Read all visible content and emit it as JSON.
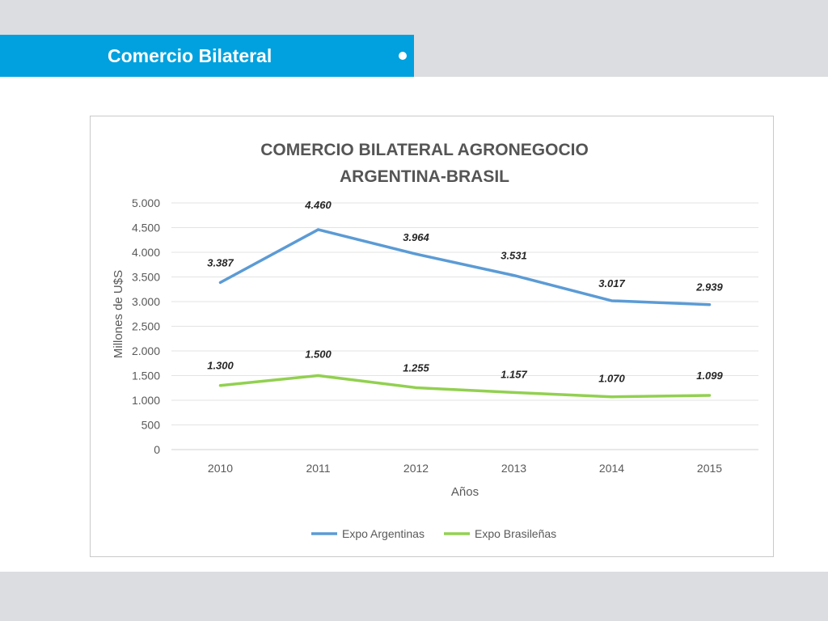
{
  "header": {
    "title": "Comercio Bilateral"
  },
  "chart_data": {
    "type": "line",
    "title": [
      "COMERCIO BILATERAL AGRONEGOCIO",
      "ARGENTINA-BRASIL"
    ],
    "xlabel": "Años",
    "ylabel": "Millones de U$S",
    "categories": [
      "2010",
      "2011",
      "2012",
      "2013",
      "2014",
      "2015"
    ],
    "ylim": [
      0,
      5000
    ],
    "yticks": [
      0,
      500,
      1000,
      1500,
      2000,
      2500,
      3000,
      3500,
      4000,
      4500,
      5000
    ],
    "ytick_labels": [
      "0",
      "500",
      "1.000",
      "1.500",
      "2.000",
      "2.500",
      "3.000",
      "3.500",
      "4.000",
      "4.500",
      "5.000"
    ],
    "grid": true,
    "legend_position": "bottom",
    "series": [
      {
        "name": "Expo Argentinas",
        "color": "#5b9bd5",
        "values": [
          3387,
          4460,
          3964,
          3531,
          3017,
          2939
        ],
        "labels": [
          "3.387",
          "4.460",
          "3.964",
          "3.531",
          "3.017",
          "2.939"
        ]
      },
      {
        "name": "Expo Brasileñas",
        "color": "#92d050",
        "values": [
          1300,
          1500,
          1255,
          1157,
          1070,
          1099
        ],
        "labels": [
          "1.300",
          "1.500",
          "1.255",
          "1.157",
          "1.070",
          "1.099"
        ]
      }
    ]
  }
}
